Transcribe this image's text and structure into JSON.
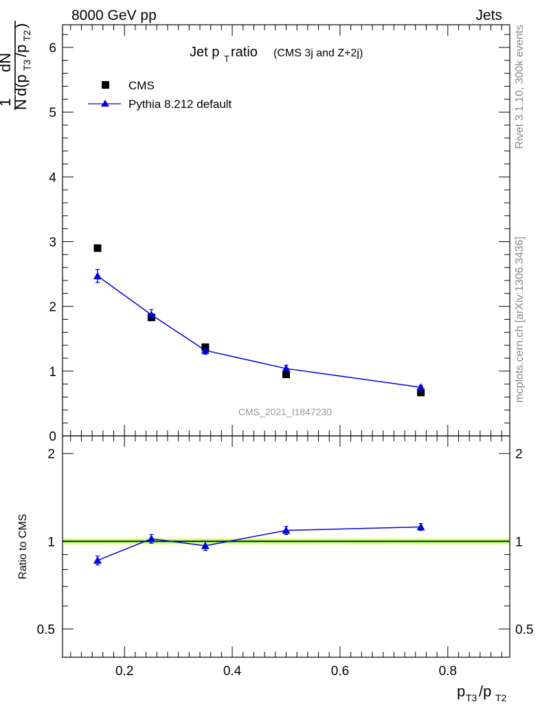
{
  "header": {
    "left": "8000 GeV pp",
    "right": "Jets"
  },
  "side_text": {
    "rivet": "Rivet 3.1.10,  300k events",
    "mcplots": "mcplots.cern.ch [arXiv:1306.3436]"
  },
  "title": {
    "main": "Jet p",
    "main_sub": "T",
    "main_tail": " ratio",
    "small": "(CMS 3j and Z+2j)"
  },
  "legend": {
    "cms": "CMS",
    "pythia": "Pythia 8.212 default"
  },
  "watermark": "CMS_2021_I1847230",
  "axes": {
    "y_top_label": "1/N dN/d(pT3/pT2)",
    "y_bottom_label": "Ratio to CMS",
    "x_label": "pT3/pT2",
    "x_ticks": [
      "0.2",
      "0.4",
      "0.6",
      "0.8"
    ],
    "y_top_ticks": [
      "0",
      "1",
      "2",
      "3",
      "4",
      "5",
      "6"
    ],
    "y_bottom_ticks": [
      "0.5",
      "1",
      "2"
    ]
  },
  "colors": {
    "pythia": "#0000dd",
    "cms": "#000000",
    "band_yellow": "#f2f799",
    "band_green": "#99ee66"
  },
  "chart_data": [
    {
      "type": "scatter",
      "panel": "main",
      "title": "Jet pT ratio (CMS 3j and Z+2j)",
      "xlabel": "pT3/pT2",
      "ylabel": "1/N dN/d(pT3/pT2)",
      "xlim": [
        0.085,
        0.915
      ],
      "ylim": [
        0,
        6.35
      ],
      "legend": "top-left",
      "series": [
        {
          "name": "CMS",
          "marker": "square",
          "x": [
            0.15,
            0.25,
            0.35,
            0.5,
            0.75
          ],
          "y": [
            2.9,
            1.83,
            1.37,
            0.95,
            0.67
          ]
        },
        {
          "name": "Pythia 8.212 default",
          "marker": "triangle",
          "line": true,
          "x": [
            0.15,
            0.25,
            0.35,
            0.5,
            0.75
          ],
          "y": [
            2.47,
            1.87,
            1.32,
            1.04,
            0.75
          ],
          "yerr": [
            0.1,
            0.08,
            0.06,
            0.05,
            0.03
          ]
        }
      ]
    },
    {
      "type": "line",
      "panel": "ratio",
      "ylabel": "Ratio to CMS",
      "xlabel": "pT3/pT2",
      "xlim": [
        0.085,
        0.915
      ],
      "ylim": [
        0.4,
        2.3
      ],
      "yscale": "log",
      "series": [
        {
          "name": "Pythia 8.212 default",
          "x": [
            0.15,
            0.25,
            0.35,
            0.5,
            0.75
          ],
          "y": [
            0.86,
            1.02,
            0.965,
            1.09,
            1.12
          ],
          "yerr": [
            0.03,
            0.035,
            0.035,
            0.035,
            0.03
          ]
        }
      ]
    }
  ]
}
